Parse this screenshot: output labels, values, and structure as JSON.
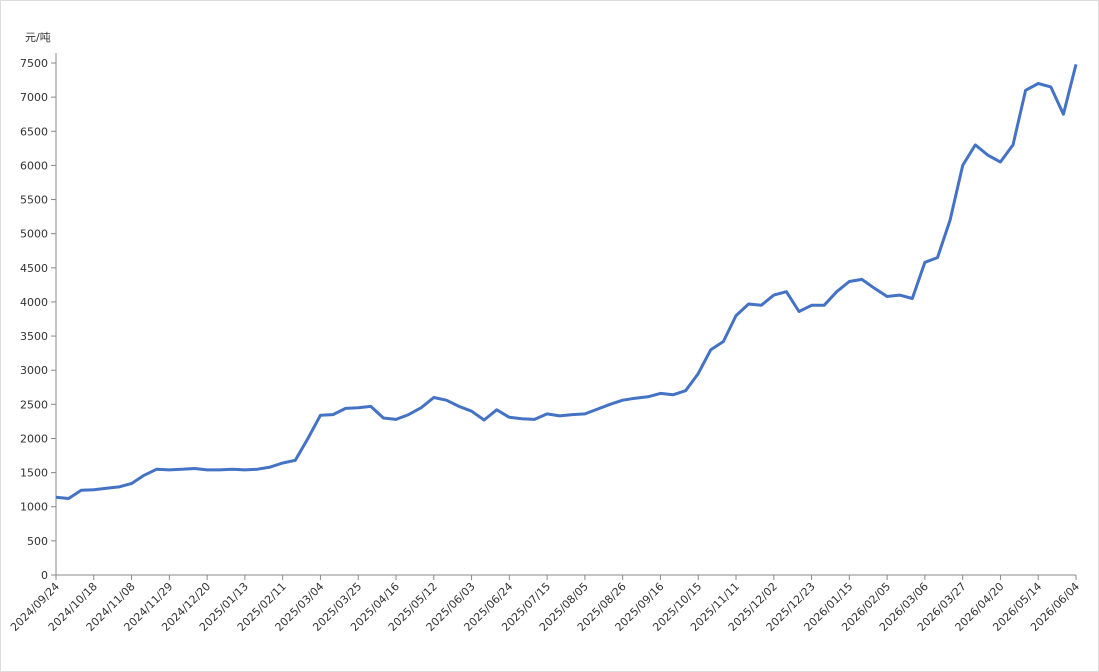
{
  "chart_data": {
    "type": "line",
    "y_label": "元/吨",
    "categories": [
      "2024/09/24",
      null,
      null,
      "2024/10/18",
      null,
      null,
      "2024/11/08",
      null,
      null,
      "2024/11/29",
      null,
      null,
      "2024/12/20",
      null,
      null,
      "2025/01/13",
      null,
      null,
      "2025/02/11",
      null,
      null,
      "2025/03/04",
      null,
      null,
      "2025/03/25",
      null,
      null,
      "2025/04/16",
      null,
      null,
      "2025/05/12",
      null,
      null,
      "2025/06/03",
      null,
      null,
      "2025/06/24",
      null,
      null,
      "2025/07/15",
      null,
      null,
      "2025/08/05",
      null,
      null,
      "2025/08/26",
      null,
      null,
      "2025/09/16",
      null,
      null,
      "2025/10/15",
      null,
      null,
      "2025/11/11",
      null,
      null,
      "2025/12/02",
      null,
      null,
      "2025/12/23",
      null,
      null,
      "2026/01/15",
      null,
      null,
      "2026/02/05",
      null,
      null,
      "2026/03/06",
      null,
      null,
      "2026/03/27",
      null,
      null,
      "2026/04/20",
      null,
      null,
      "2026/05/14",
      null,
      null,
      "2026/06/04"
    ],
    "series": [
      {
        "color": "#4472c4",
        "values": [
          1140,
          1120,
          1240,
          1250,
          1270,
          1290,
          1340,
          1460,
          1550,
          1540,
          1550,
          1560,
          1540,
          1540,
          1550,
          1540,
          1550,
          1580,
          1640,
          1680,
          2000,
          2340,
          2350,
          2440,
          2450,
          2470,
          2300,
          2280,
          2350,
          2450,
          2600,
          2560,
          2470,
          2400,
          2270,
          2420,
          2310,
          2290,
          2280,
          2360,
          2330,
          2350,
          2360,
          2430,
          2500,
          2560,
          2590,
          2610,
          2660,
          2640,
          2700,
          2950,
          3300,
          3420,
          3800,
          3970,
          3950,
          4100,
          4150,
          3860,
          3950,
          3950,
          4150,
          4300,
          4330,
          4200,
          4080,
          4100,
          4050,
          4580,
          4650,
          5200,
          6000,
          6300,
          6150,
          6050,
          6300,
          7100,
          7200,
          7150,
          6750,
          7480
        ]
      }
    ],
    "ylim": [
      0,
      7500
    ],
    "yticks": [
      0,
      500,
      1000,
      1500,
      2000,
      2500,
      3000,
      3500,
      4000,
      4500,
      5000,
      5500,
      6000,
      6500,
      7000,
      7500
    ],
    "grid": false
  }
}
